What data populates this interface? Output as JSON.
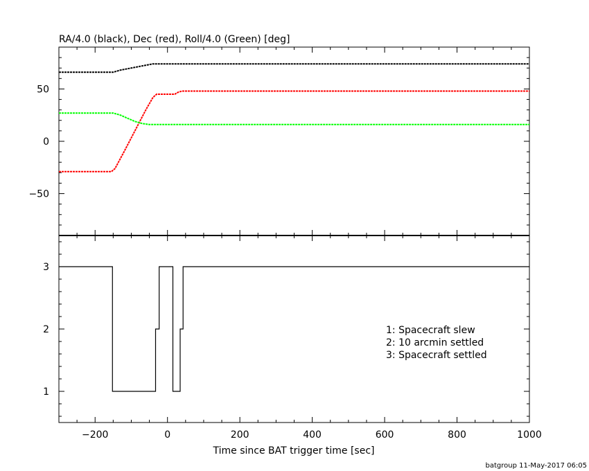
{
  "chart_data": [
    {
      "type": "line",
      "title": "RA/4.0 (black), Dec (red), Roll/4.0 (Green) [deg]",
      "xlim": [
        -300,
        1000
      ],
      "ylim": [
        -90,
        90
      ],
      "yticks": [
        -50,
        0,
        50
      ],
      "ytick_labels": [
        "−50",
        "0",
        "50"
      ],
      "grid": false,
      "series": [
        {
          "color": "#000000",
          "x": [
            -300,
            -150,
            -130,
            -100,
            -70,
            -40,
            -30,
            0,
            40,
            1000
          ],
          "y": [
            66,
            66,
            68,
            70,
            72,
            74,
            74,
            74,
            74,
            74
          ]
        },
        {
          "color": "#ff0000",
          "x": [
            -300,
            -155,
            -145,
            -120,
            -90,
            -60,
            -40,
            -30,
            20,
            30,
            40,
            1000
          ],
          "y": [
            -29,
            -29,
            -26,
            -10,
            10,
            30,
            42,
            45,
            45,
            47,
            48,
            48
          ]
        },
        {
          "color": "#00ff00",
          "x": [
            -300,
            -150,
            -130,
            -110,
            -90,
            -70,
            -50,
            -30,
            0,
            40,
            1000
          ],
          "y": [
            27,
            27,
            25,
            22,
            19,
            17,
            16,
            16,
            16,
            16,
            16
          ]
        }
      ]
    },
    {
      "type": "line",
      "xlabel": "Time since BAT trigger time [sec]",
      "xlim": [
        -300,
        1000
      ],
      "ylim": [
        0.5,
        3.5
      ],
      "yticks": [
        1,
        2,
        3
      ],
      "ytick_labels": [
        "1",
        "2",
        "3"
      ],
      "xticks": [
        -200,
        0,
        200,
        400,
        600,
        800,
        1000
      ],
      "xtick_labels": [
        "−200",
        "0",
        "200",
        "400",
        "600",
        "800",
        "1000"
      ],
      "grid": false,
      "series": [
        {
          "color": "#000000",
          "step": true,
          "x": [
            -300,
            -152,
            -152,
            -33,
            -33,
            -23,
            -23,
            15,
            15,
            35,
            35,
            43,
            43,
            1000
          ],
          "y": [
            3,
            3,
            1,
            1,
            2,
            2,
            3,
            3,
            1,
            1,
            2,
            2,
            3,
            3
          ]
        }
      ],
      "annotations": [
        "1: Spacecraft slew",
        "2: 10 arcmin settled",
        "3: Spacecraft settled"
      ]
    }
  ],
  "footer": "batgroup 11-May-2017 06:05"
}
